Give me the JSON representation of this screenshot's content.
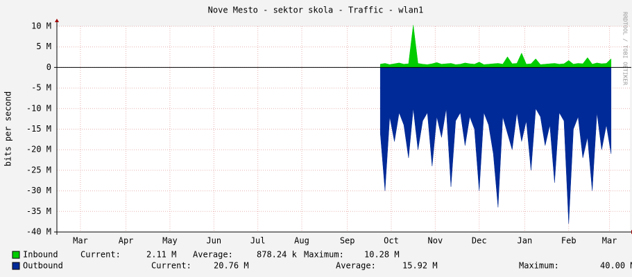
{
  "chart_data": {
    "type": "area",
    "title": "Nove Mesto - sektor skola - Traffic - wlan1",
    "ylabel": "bits per second",
    "watermark": "RRDTOOL / TOBI OETIKER",
    "xlim": [
      0,
      365
    ],
    "xticks": [
      {
        "value": 15,
        "label": "Mar"
      },
      {
        "value": 44,
        "label": "Apr"
      },
      {
        "value": 72,
        "label": "May"
      },
      {
        "value": 100,
        "label": "Jun"
      },
      {
        "value": 128,
        "label": "Jul"
      },
      {
        "value": 156,
        "label": "Aug"
      },
      {
        "value": 185,
        "label": "Sep"
      },
      {
        "value": 213,
        "label": "Oct"
      },
      {
        "value": 241,
        "label": "Nov"
      },
      {
        "value": 269,
        "label": "Dec"
      },
      {
        "value": 298,
        "label": "Jan"
      },
      {
        "value": 326,
        "label": "Feb"
      },
      {
        "value": 352,
        "label": "Mar"
      }
    ],
    "ylim": [
      -40,
      10
    ],
    "yticks": [
      {
        "value": 10,
        "label": "10 M"
      },
      {
        "value": 5,
        "label": "5 M"
      },
      0,
      {
        "value": -5,
        "label": "-5 M"
      },
      {
        "value": -10,
        "label": "-10 M"
      },
      {
        "value": -15,
        "label": "-15 M"
      },
      {
        "value": -20,
        "label": "-20 M"
      },
      {
        "value": -25,
        "label": "-25 M"
      },
      {
        "value": -30,
        "label": "-30 M"
      },
      {
        "value": -35,
        "label": "-35 M"
      },
      {
        "value": -40,
        "label": "-40 M"
      }
    ],
    "grid": true,
    "x": [
      206,
      209,
      212,
      215,
      218,
      221,
      224,
      227,
      230,
      233,
      236,
      239,
      242,
      245,
      248,
      251,
      254,
      257,
      260,
      263,
      266,
      269,
      272,
      275,
      278,
      281,
      284,
      287,
      290,
      293,
      296,
      299,
      302,
      305,
      308,
      311,
      314,
      317,
      320,
      323,
      326,
      329,
      332,
      335,
      338,
      341,
      344,
      347,
      350,
      353
    ],
    "series": [
      {
        "name": "Inbound",
        "color": "#00cc00",
        "values": [
          0.8,
          1.0,
          0.7,
          0.9,
          1.1,
          0.8,
          0.9,
          10.3,
          1.0,
          0.8,
          0.7,
          0.9,
          1.2,
          0.8,
          0.9,
          1.0,
          0.7,
          0.8,
          1.1,
          0.9,
          0.8,
          1.3,
          0.7,
          0.8,
          0.9,
          1.0,
          0.8,
          2.6,
          0.9,
          1.0,
          3.5,
          0.8,
          0.9,
          2.1,
          0.7,
          0.8,
          0.9,
          1.0,
          0.8,
          0.9,
          1.7,
          0.8,
          1.0,
          0.9,
          2.4,
          0.8,
          1.1,
          0.9,
          1.0,
          2.1
        ],
        "stats": [
          {
            "label": "Current:",
            "text": "2.11 M"
          },
          {
            "label": "Average:",
            "text": "878.24 k"
          },
          {
            "label": "Maximum:",
            "text": "10.28 M"
          }
        ]
      },
      {
        "name": "Outbound",
        "color": "#002a97",
        "values": [
          -16,
          -30,
          -12,
          -18,
          -11,
          -14,
          -22,
          -10,
          -20,
          -13,
          -11,
          -24,
          -12,
          -17,
          -10,
          -29,
          -13,
          -11,
          -19,
          -12,
          -15,
          -30,
          -11,
          -14,
          -21,
          -34,
          -12,
          -16,
          -20,
          -11,
          -18,
          -13,
          -25,
          -10,
          -12,
          -19,
          -14,
          -28,
          -11,
          -13,
          -38,
          -15,
          -12,
          -22,
          -17,
          -30,
          -11,
          -20,
          -14,
          -21
        ],
        "stats": [
          {
            "label": "Current:",
            "text": "20.76 M"
          },
          {
            "label": "Average:",
            "text": "15.92 M"
          },
          {
            "label": "Maximum:",
            "text": "40.00 M"
          }
        ]
      }
    ]
  }
}
